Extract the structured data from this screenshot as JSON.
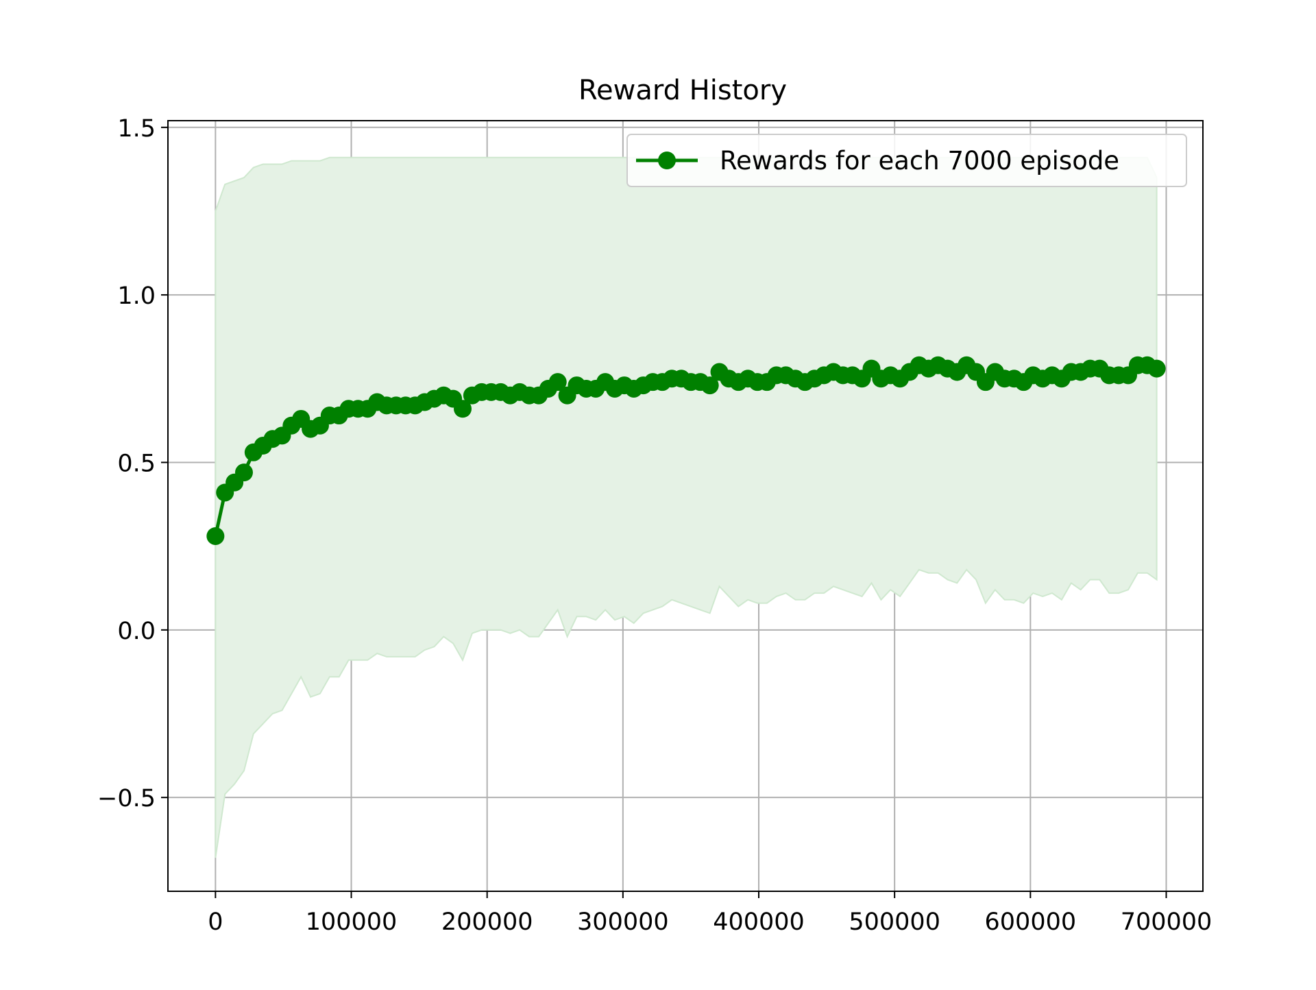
{
  "chart_data": {
    "type": "line",
    "title": "Reward History",
    "xlabel": "",
    "ylabel": "",
    "xlim": [
      -35000,
      727000
    ],
    "ylim": [
      -0.78,
      1.52
    ],
    "x_ticks": [
      0,
      100000,
      200000,
      300000,
      400000,
      500000,
      600000,
      700000
    ],
    "x_tick_labels": [
      "0",
      "100000",
      "200000",
      "300000",
      "400000",
      "500000",
      "600000",
      "700000"
    ],
    "y_ticks": [
      -0.5,
      0.0,
      0.5,
      1.0,
      1.5
    ],
    "y_tick_labels": [
      "−0.5",
      "0.0",
      "0.5",
      "1.0",
      "1.5"
    ],
    "grid": true,
    "legend_position": "upper right",
    "colors": {
      "line": "#008000",
      "band": "#e5f2e5",
      "band_edge": "#cfe8cf",
      "grid": "#b0b0b0"
    },
    "series": [
      {
        "name": "Rewards for each 7000 episode",
        "x": [
          0,
          7000,
          14000,
          21000,
          28000,
          35000,
          42000,
          49000,
          56000,
          63000,
          70000,
          77000,
          84000,
          91000,
          98000,
          105000,
          112000,
          119000,
          126000,
          133000,
          140000,
          147000,
          154000,
          161000,
          168000,
          175000,
          182000,
          189000,
          196000,
          203000,
          210000,
          217000,
          224000,
          231000,
          238000,
          245000,
          252000,
          259000,
          266000,
          273000,
          280000,
          287000,
          294000,
          301000,
          308000,
          315000,
          322000,
          329000,
          336000,
          343000,
          350000,
          357000,
          364000,
          371000,
          378000,
          385000,
          392000,
          399000,
          406000,
          413000,
          420000,
          427000,
          434000,
          441000,
          448000,
          455000,
          462000,
          469000,
          476000,
          483000,
          490000,
          497000,
          504000,
          511000,
          518000,
          525000,
          532000,
          539000,
          546000,
          553000,
          560000,
          567000,
          574000,
          581000,
          588000,
          595000,
          602000,
          609000,
          616000,
          623000,
          630000,
          637000,
          644000,
          651000,
          658000,
          665000,
          672000,
          679000,
          686000,
          693000
        ],
        "y": [
          0.28,
          0.41,
          0.44,
          0.47,
          0.53,
          0.55,
          0.57,
          0.58,
          0.61,
          0.63,
          0.6,
          0.61,
          0.64,
          0.64,
          0.66,
          0.66,
          0.66,
          0.68,
          0.67,
          0.67,
          0.67,
          0.67,
          0.68,
          0.69,
          0.7,
          0.69,
          0.66,
          0.7,
          0.71,
          0.71,
          0.71,
          0.7,
          0.71,
          0.7,
          0.7,
          0.72,
          0.74,
          0.7,
          0.73,
          0.72,
          0.72,
          0.74,
          0.72,
          0.73,
          0.72,
          0.73,
          0.74,
          0.74,
          0.75,
          0.75,
          0.74,
          0.74,
          0.73,
          0.77,
          0.75,
          0.74,
          0.75,
          0.74,
          0.74,
          0.76,
          0.76,
          0.75,
          0.74,
          0.75,
          0.76,
          0.77,
          0.76,
          0.76,
          0.75,
          0.78,
          0.75,
          0.76,
          0.75,
          0.77,
          0.79,
          0.78,
          0.79,
          0.78,
          0.77,
          0.79,
          0.77,
          0.74,
          0.77,
          0.75,
          0.75,
          0.74,
          0.76,
          0.75,
          0.76,
          0.75,
          0.77,
          0.77,
          0.78,
          0.78,
          0.76,
          0.76,
          0.76,
          0.79,
          0.79,
          0.78
        ],
        "lower": [
          -0.68,
          -0.49,
          -0.46,
          -0.42,
          -0.31,
          -0.28,
          -0.25,
          -0.24,
          -0.19,
          -0.14,
          -0.2,
          -0.19,
          -0.14,
          -0.14,
          -0.09,
          -0.09,
          -0.09,
          -0.07,
          -0.08,
          -0.08,
          -0.08,
          -0.08,
          -0.06,
          -0.05,
          -0.02,
          -0.04,
          -0.09,
          -0.01,
          0.0,
          0.0,
          0.0,
          -0.01,
          0.0,
          -0.02,
          -0.02,
          0.02,
          0.06,
          -0.02,
          0.04,
          0.04,
          0.03,
          0.06,
          0.03,
          0.04,
          0.02,
          0.05,
          0.06,
          0.07,
          0.09,
          0.08,
          0.07,
          0.06,
          0.05,
          0.13,
          0.1,
          0.07,
          0.09,
          0.08,
          0.08,
          0.1,
          0.11,
          0.09,
          0.09,
          0.11,
          0.11,
          0.13,
          0.12,
          0.11,
          0.1,
          0.14,
          0.09,
          0.12,
          0.1,
          0.14,
          0.18,
          0.17,
          0.17,
          0.15,
          0.14,
          0.18,
          0.15,
          0.08,
          0.12,
          0.09,
          0.09,
          0.08,
          0.11,
          0.1,
          0.11,
          0.09,
          0.14,
          0.12,
          0.15,
          0.15,
          0.11,
          0.11,
          0.12,
          0.17,
          0.17,
          0.15
        ],
        "upper": [
          1.25,
          1.33,
          1.34,
          1.35,
          1.38,
          1.39,
          1.39,
          1.39,
          1.4,
          1.4,
          1.4,
          1.4,
          1.41,
          1.41,
          1.41,
          1.41,
          1.41,
          1.41,
          1.41,
          1.41,
          1.41,
          1.41,
          1.41,
          1.41,
          1.41,
          1.41,
          1.41,
          1.41,
          1.41,
          1.41,
          1.41,
          1.41,
          1.41,
          1.41,
          1.41,
          1.41,
          1.41,
          1.41,
          1.41,
          1.41,
          1.41,
          1.41,
          1.41,
          1.41,
          1.41,
          1.41,
          1.41,
          1.41,
          1.41,
          1.41,
          1.41,
          1.41,
          1.41,
          1.41,
          1.41,
          1.41,
          1.41,
          1.41,
          1.41,
          1.41,
          1.41,
          1.41,
          1.41,
          1.41,
          1.41,
          1.41,
          1.41,
          1.41,
          1.41,
          1.41,
          1.41,
          1.41,
          1.41,
          1.41,
          1.41,
          1.41,
          1.41,
          1.41,
          1.41,
          1.41,
          1.41,
          1.41,
          1.41,
          1.41,
          1.41,
          1.41,
          1.41,
          1.41,
          1.41,
          1.41,
          1.41,
          1.41,
          1.41,
          1.41,
          1.41,
          1.41,
          1.41,
          1.41,
          1.41,
          1.35
        ]
      }
    ]
  }
}
